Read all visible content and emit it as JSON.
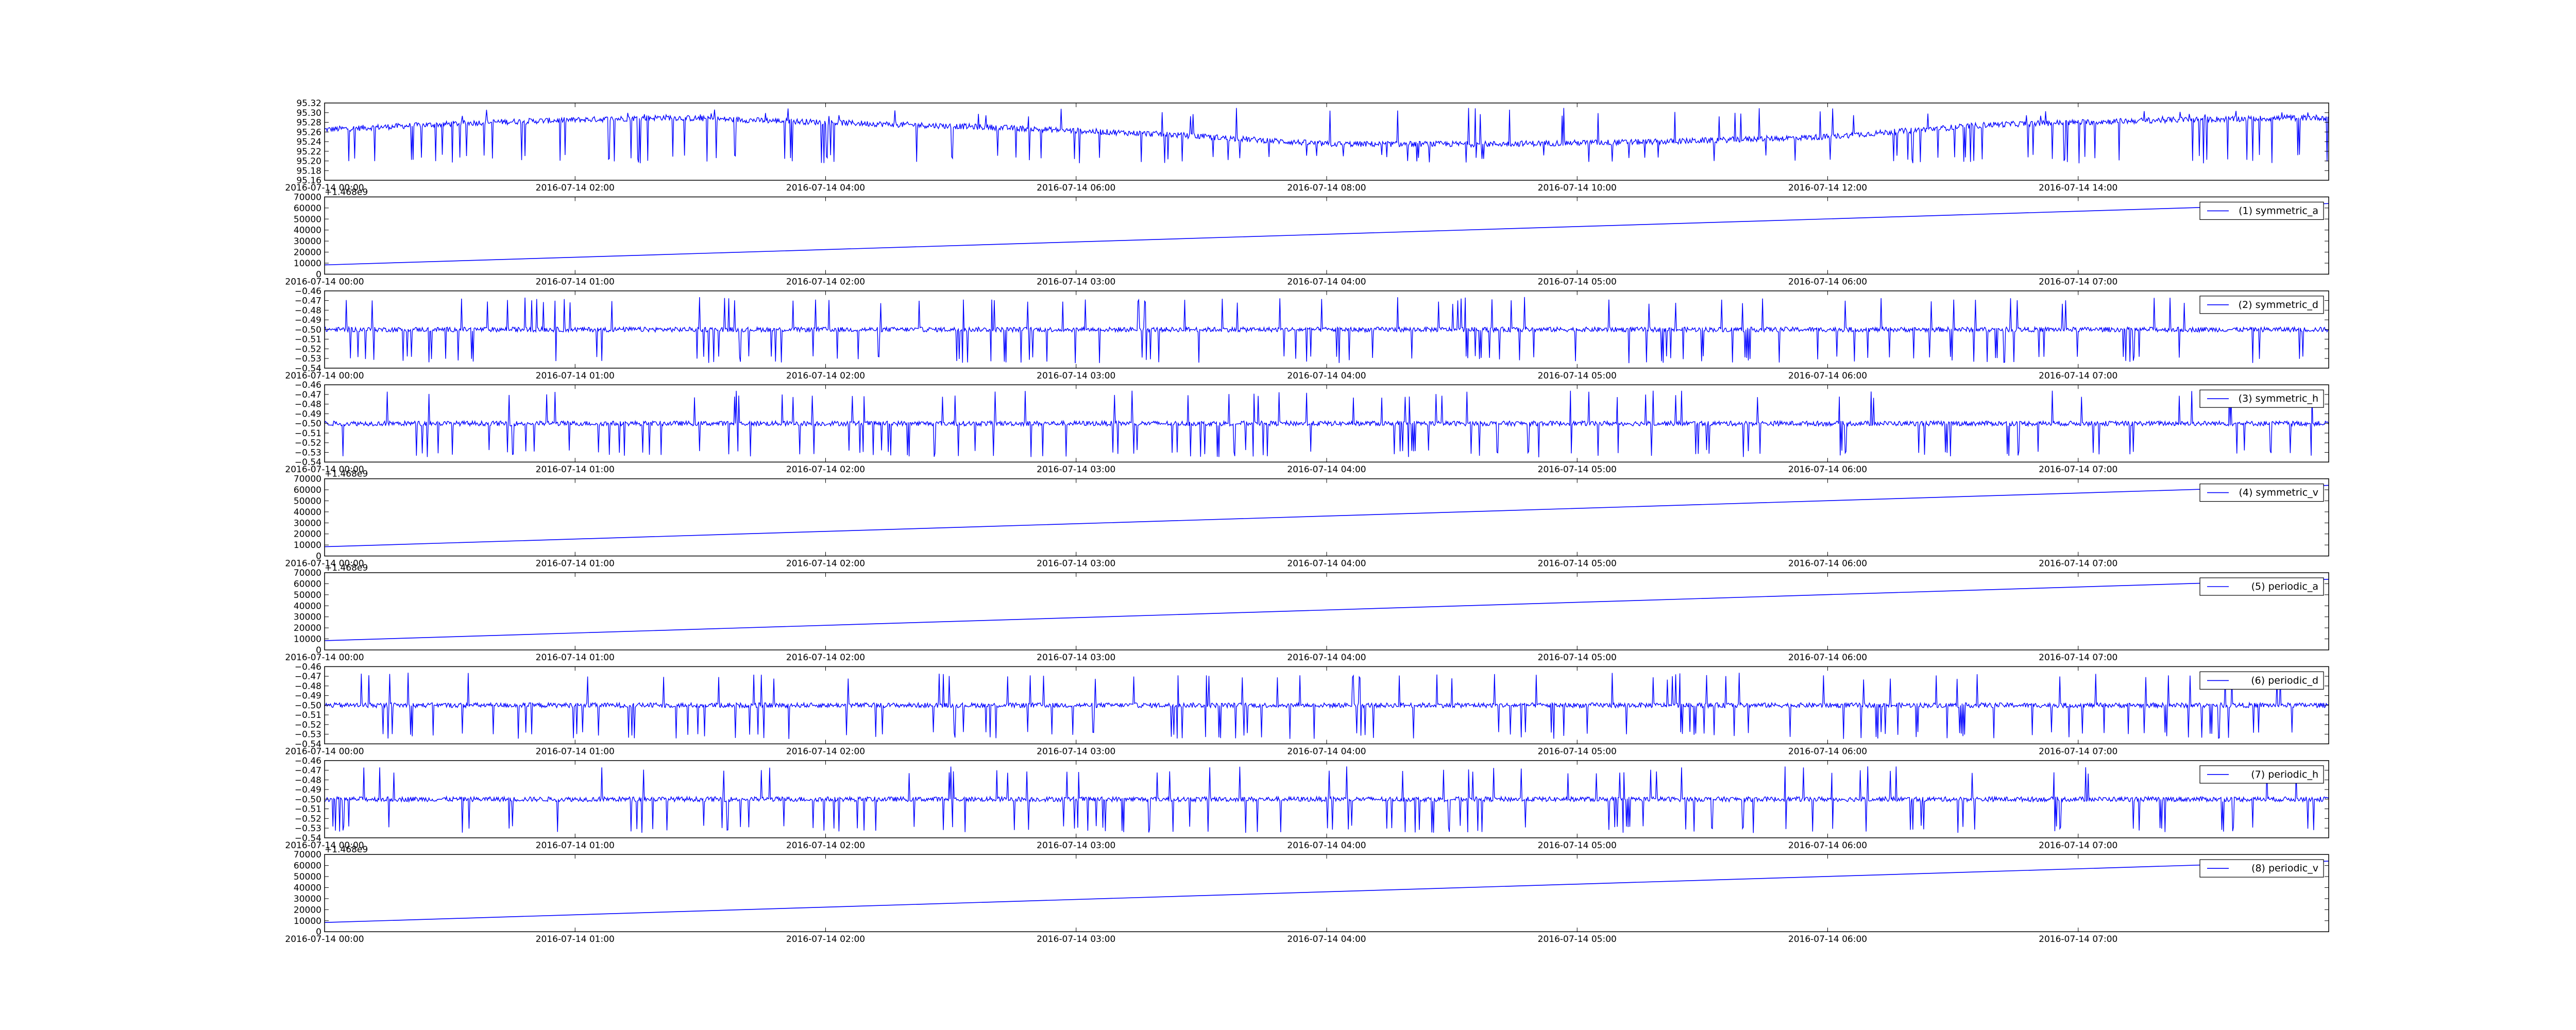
{
  "colors": {
    "line": "#0000ff",
    "frame": "#000000",
    "background": "#ffffff"
  },
  "chart_data": [
    {
      "type": "line",
      "y_offset_label": "",
      "ylim": [
        95.16,
        95.32
      ],
      "yticks": [
        "95.16",
        "95.18",
        "95.20",
        "95.22",
        "95.24",
        "95.26",
        "95.28",
        "95.30",
        "95.32"
      ],
      "xticks": [
        "2016-07-14 00:00",
        "2016-07-14 02:00",
        "2016-07-14 04:00",
        "2016-07-14 06:00",
        "2016-07-14 08:00",
        "2016-07-14 10:00",
        "2016-07-14 12:00",
        "2016-07-14 14:00"
      ],
      "legend": null,
      "series": [
        {
          "kind": "noisy",
          "baseline": [
            [
              0,
              95.265
            ],
            [
              0.08,
              95.28
            ],
            [
              0.17,
              95.29
            ],
            [
              0.25,
              95.28
            ],
            [
              0.33,
              95.27
            ],
            [
              0.42,
              95.255
            ],
            [
              0.5,
              95.235
            ],
            [
              0.58,
              95.235
            ],
            [
              0.67,
              95.24
            ],
            [
              0.75,
              95.25
            ],
            [
              0.83,
              95.275
            ],
            [
              0.92,
              95.285
            ],
            [
              1,
              95.29
            ]
          ],
          "noise": 0.006,
          "spike_low": 95.195,
          "spike_high": 95.31
        }
      ]
    },
    {
      "type": "line",
      "y_offset_label": "+1.468e9",
      "ylim": [
        0,
        70000
      ],
      "yticks": [
        "0",
        "10000",
        "20000",
        "30000",
        "40000",
        "50000",
        "60000",
        "70000"
      ],
      "xticks": [
        "2016-07-14 00:00",
        "2016-07-14 01:00",
        "2016-07-14 02:00",
        "2016-07-14 03:00",
        "2016-07-14 04:00",
        "2016-07-14 05:00",
        "2016-07-14 06:00",
        "2016-07-14 07:00"
      ],
      "legend": "(1) symmetric_a",
      "series": [
        {
          "kind": "linear",
          "y_start": 8400,
          "y_end": 64000
        }
      ]
    },
    {
      "type": "line",
      "y_offset_label": "",
      "ylim": [
        -0.54,
        -0.46
      ],
      "yticks": [
        "−0.54",
        "−0.53",
        "−0.52",
        "−0.51",
        "−0.50",
        "−0.49",
        "−0.48",
        "−0.47",
        "−0.46"
      ],
      "xticks": [
        "2016-07-14 00:00",
        "2016-07-14 01:00",
        "2016-07-14 02:00",
        "2016-07-14 03:00",
        "2016-07-14 04:00",
        "2016-07-14 05:00",
        "2016-07-14 06:00",
        "2016-07-14 07:00"
      ],
      "legend": "(2) symmetric_d",
      "series": [
        {
          "kind": "noisy",
          "baseline": [
            [
              0,
              -0.5
            ],
            [
              1,
              -0.5
            ]
          ],
          "noise": 0.0025,
          "spike_low": -0.535,
          "spike_high": -0.466
        }
      ]
    },
    {
      "type": "line",
      "y_offset_label": "",
      "ylim": [
        -0.54,
        -0.46
      ],
      "yticks": [
        "−0.54",
        "−0.53",
        "−0.52",
        "−0.51",
        "−0.50",
        "−0.49",
        "−0.48",
        "−0.47",
        "−0.46"
      ],
      "xticks": [
        "2016-07-14 00:00",
        "2016-07-14 01:00",
        "2016-07-14 02:00",
        "2016-07-14 03:00",
        "2016-07-14 04:00",
        "2016-07-14 05:00",
        "2016-07-14 06:00",
        "2016-07-14 07:00"
      ],
      "legend": "(3) symmetric_h",
      "series": [
        {
          "kind": "noisy",
          "baseline": [
            [
              0,
              -0.5
            ],
            [
              1,
              -0.5
            ]
          ],
          "noise": 0.0025,
          "spike_low": -0.535,
          "spike_high": -0.466
        }
      ]
    },
    {
      "type": "line",
      "y_offset_label": "+1.468e9",
      "ylim": [
        0,
        70000
      ],
      "yticks": [
        "0",
        "10000",
        "20000",
        "30000",
        "40000",
        "50000",
        "60000",
        "70000"
      ],
      "xticks": [
        "2016-07-14 00:00",
        "2016-07-14 01:00",
        "2016-07-14 02:00",
        "2016-07-14 03:00",
        "2016-07-14 04:00",
        "2016-07-14 05:00",
        "2016-07-14 06:00",
        "2016-07-14 07:00"
      ],
      "legend": "(4) symmetric_v",
      "series": [
        {
          "kind": "linear",
          "y_start": 8400,
          "y_end": 64000
        }
      ]
    },
    {
      "type": "line",
      "y_offset_label": "+1.468e9",
      "ylim": [
        0,
        70000
      ],
      "yticks": [
        "0",
        "10000",
        "20000",
        "30000",
        "40000",
        "50000",
        "60000",
        "70000"
      ],
      "xticks": [
        "2016-07-14 00:00",
        "2016-07-14 01:00",
        "2016-07-14 02:00",
        "2016-07-14 03:00",
        "2016-07-14 04:00",
        "2016-07-14 05:00",
        "2016-07-14 06:00",
        "2016-07-14 07:00"
      ],
      "legend": "(5) periodic_a",
      "series": [
        {
          "kind": "linear",
          "y_start": 8400,
          "y_end": 64000
        }
      ]
    },
    {
      "type": "line",
      "y_offset_label": "",
      "ylim": [
        -0.54,
        -0.46
      ],
      "yticks": [
        "−0.54",
        "−0.53",
        "−0.52",
        "−0.51",
        "−0.50",
        "−0.49",
        "−0.48",
        "−0.47",
        "−0.46"
      ],
      "xticks": [
        "2016-07-14 00:00",
        "2016-07-14 01:00",
        "2016-07-14 02:00",
        "2016-07-14 03:00",
        "2016-07-14 04:00",
        "2016-07-14 05:00",
        "2016-07-14 06:00",
        "2016-07-14 07:00"
      ],
      "legend": "(6) periodic_d",
      "series": [
        {
          "kind": "noisy",
          "baseline": [
            [
              0,
              -0.5
            ],
            [
              1,
              -0.5
            ]
          ],
          "noise": 0.0025,
          "spike_low": -0.535,
          "spike_high": -0.466
        }
      ]
    },
    {
      "type": "line",
      "y_offset_label": "",
      "ylim": [
        -0.54,
        -0.46
      ],
      "yticks": [
        "−0.54",
        "−0.53",
        "−0.52",
        "−0.51",
        "−0.50",
        "−0.49",
        "−0.48",
        "−0.47",
        "−0.46"
      ],
      "xticks": [
        "2016-07-14 00:00",
        "2016-07-14 01:00",
        "2016-07-14 02:00",
        "2016-07-14 03:00",
        "2016-07-14 04:00",
        "2016-07-14 05:00",
        "2016-07-14 06:00",
        "2016-07-14 07:00"
      ],
      "legend": "(7) periodic_h",
      "series": [
        {
          "kind": "noisy",
          "baseline": [
            [
              0,
              -0.5
            ],
            [
              1,
              -0.5
            ]
          ],
          "noise": 0.0025,
          "spike_low": -0.535,
          "spike_high": -0.466
        }
      ]
    },
    {
      "type": "line",
      "y_offset_label": "+1.468e9",
      "ylim": [
        0,
        70000
      ],
      "yticks": [
        "0",
        "10000",
        "20000",
        "30000",
        "40000",
        "50000",
        "60000",
        "70000"
      ],
      "xticks": [
        "2016-07-14 00:00",
        "2016-07-14 01:00",
        "2016-07-14 02:00",
        "2016-07-14 03:00",
        "2016-07-14 04:00",
        "2016-07-14 05:00",
        "2016-07-14 06:00",
        "2016-07-14 07:00"
      ],
      "legend": "(8) periodic_v",
      "series": [
        {
          "kind": "linear",
          "y_start": 8400,
          "y_end": 64000
        }
      ]
    }
  ]
}
